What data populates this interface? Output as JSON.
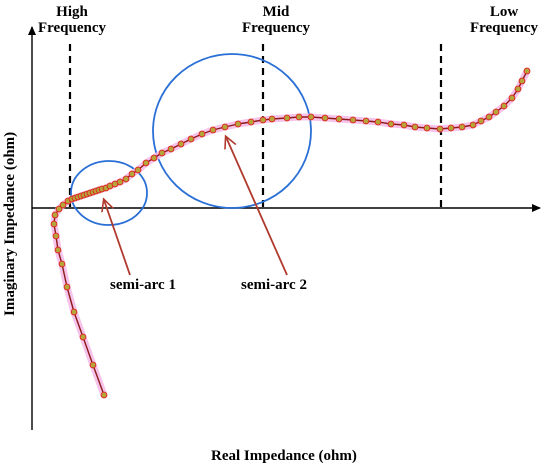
{
  "regions": {
    "high": [
      "High",
      "Frequency"
    ],
    "mid": [
      "Mid",
      "Frequency"
    ],
    "low": [
      "Low",
      "Frequency"
    ]
  },
  "axes": {
    "x_title": "Real Impedance (ohm)",
    "y_title": "Imaginary Impedance (ohm)"
  },
  "annotations": {
    "semi_arc_1": "semi-arc 1",
    "semi_arc_2": "semi-arc 2"
  },
  "colors": {
    "curve": "#8b1a1a",
    "marker_fill": "#b5a53a",
    "marker_edge": "#e02020",
    "glow": "#f4b8e6",
    "circle": "#2a6fd6",
    "arrow": "#b03a2e",
    "axis": "#000000"
  }
}
